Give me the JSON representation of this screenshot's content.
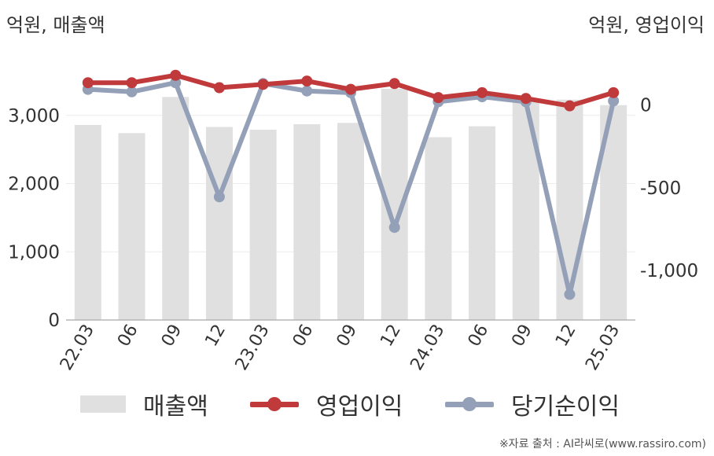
{
  "units": {
    "left": "억원, 매출액",
    "right": "억원, 영업이익"
  },
  "source": "※자료 출처 : AI라씨로(www.rassiro.com)",
  "colors": {
    "bar": "#e0e0e0",
    "operating": "#c0393b",
    "net": "#93a0b8",
    "axis": "#b5b5b5",
    "grid": "#ececec",
    "text": "#333333"
  },
  "chart_data": {
    "type": "bar+line",
    "categories": [
      "22.03",
      "06",
      "09",
      "12",
      "23.03",
      "06",
      "09",
      "12",
      "24.03",
      "06",
      "09",
      "12",
      "25.03"
    ],
    "left_axis": {
      "ylim": [
        0,
        4000
      ],
      "ticks": [
        0,
        1000,
        2000,
        3000
      ],
      "tick_labels": [
        "0",
        "1,000",
        "2,000",
        "3,000"
      ]
    },
    "right_axis": {
      "ylim": [
        -1300,
        350
      ],
      "ticks": [
        0,
        -500,
        -1000
      ],
      "tick_labels": [
        "0",
        "-500",
        "-1,000"
      ]
    },
    "series": [
      {
        "name": "매출액",
        "type": "bar",
        "axis": "left",
        "values": [
          2860,
          2740,
          3270,
          2830,
          2790,
          2870,
          2890,
          3390,
          2680,
          2840,
          3250,
          3230,
          3150
        ]
      },
      {
        "name": "영업이익",
        "type": "line",
        "axis": "right",
        "values": [
          135,
          135,
          180,
          105,
          125,
          145,
          95,
          130,
          45,
          75,
          40,
          -5,
          75
        ]
      },
      {
        "name": "당기순이익",
        "type": "line",
        "axis": "right",
        "values": [
          95,
          80,
          135,
          -555,
          130,
          85,
          75,
          -740,
          20,
          50,
          20,
          -1145,
          25
        ]
      }
    ]
  }
}
